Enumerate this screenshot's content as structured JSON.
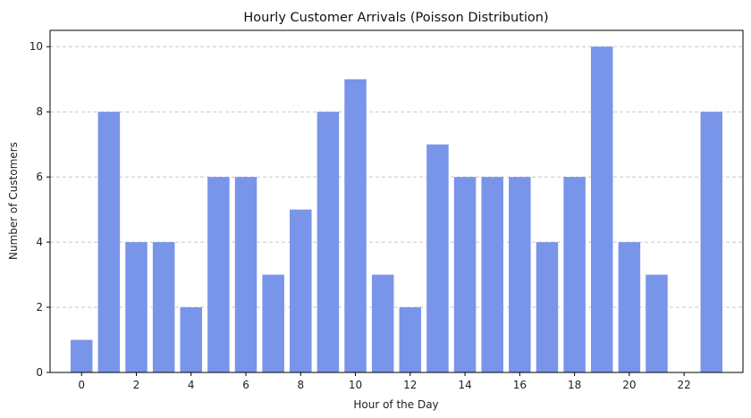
{
  "chart_data": {
    "type": "bar",
    "title": "Hourly Customer Arrivals (Poisson Distribution)",
    "xlabel": "Hour of the Day",
    "ylabel": "Number of Customers",
    "categories": [
      0,
      1,
      2,
      3,
      4,
      5,
      6,
      7,
      8,
      9,
      10,
      11,
      12,
      13,
      14,
      15,
      16,
      17,
      18,
      19,
      20,
      21,
      22,
      23
    ],
    "values": [
      1,
      8,
      4,
      4,
      2,
      6,
      6,
      3,
      5,
      8,
      9,
      3,
      2,
      7,
      6,
      6,
      6,
      4,
      6,
      10,
      4,
      3,
      0,
      8
    ],
    "xticks": [
      0,
      2,
      4,
      6,
      8,
      10,
      12,
      14,
      16,
      18,
      20,
      22
    ],
    "yticks": [
      0,
      2,
      4,
      6,
      8,
      10
    ],
    "xlim": [
      -1.15,
      24.15
    ],
    "ylim": [
      0,
      10.5
    ],
    "grid": "y-dashed",
    "bar_color": "#7895EA",
    "grid_color": "#c8c8c8"
  }
}
